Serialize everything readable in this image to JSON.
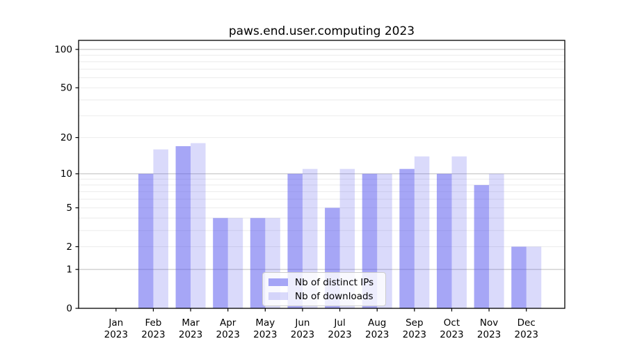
{
  "title": "paws.end.user.computing 2023",
  "chart_data": {
    "type": "bar",
    "title": "paws.end.user.computing 2023",
    "categories": [
      "Jan 2023",
      "Feb 2023",
      "Mar 2023",
      "Apr 2023",
      "May 2023",
      "Jun 2023",
      "Jul 2023",
      "Aug 2023",
      "Sep 2023",
      "Oct 2023",
      "Nov 2023",
      "Dec 2023"
    ],
    "x_tick_month_labels": [
      "Jan",
      "Feb",
      "Mar",
      "Apr",
      "May",
      "Jun",
      "Jul",
      "Aug",
      "Sep",
      "Oct",
      "Nov",
      "Dec"
    ],
    "x_tick_year_label": "2023",
    "series": [
      {
        "name": "Nb of distinct IPs",
        "values": [
          0,
          10,
          17,
          4,
          4,
          10,
          5,
          10,
          11,
          10,
          8,
          2
        ],
        "fill": "rgba(85,85,238,0.52)"
      },
      {
        "name": "Nb of downloads",
        "values": [
          0,
          16,
          18,
          4,
          4,
          11,
          11,
          10,
          14,
          14,
          10,
          2
        ],
        "fill": "rgba(85,85,238,0.22)"
      }
    ],
    "xlabel": "",
    "ylabel": "",
    "y_scale": "log10(value+1)",
    "y_ticks": [
      0,
      1,
      2,
      5,
      10,
      20,
      50,
      100
    ],
    "y_gridlines_major": [
      1,
      10,
      100
    ],
    "y_gridlines_minor": [
      2,
      3,
      4,
      5,
      6,
      7,
      8,
      9,
      20,
      30,
      40,
      50,
      60,
      70,
      80,
      90
    ],
    "ylim": [
      0,
      117
    ],
    "grid": true,
    "legend_position": "lower center"
  },
  "colors": {
    "bar_dark": "rgba(85,85,238,0.52)",
    "bar_light": "rgba(85,85,238,0.22)",
    "grid_major": "#bdbdbd",
    "grid_minor": "#ebebeb",
    "spine": "#000000",
    "legend_border": "#cccccc",
    "legend_background": "rgba(255,255,255,0.8)"
  }
}
